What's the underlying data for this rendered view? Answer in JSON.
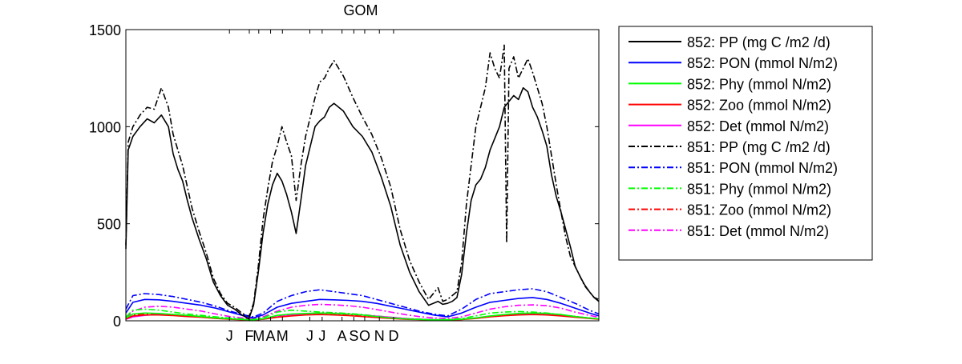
{
  "chart_data": {
    "type": "line",
    "title": "GOM",
    "xlabel": "",
    "ylabel": "",
    "xlim": [
      0,
      1000
    ],
    "ylim": [
      0,
      1500
    ],
    "y_ticks": [
      0,
      500,
      1000,
      1500
    ],
    "x_tick_labels": [
      {
        "label": "J",
        "x": 219
      },
      {
        "label": "F",
        "x": 261
      },
      {
        "label": "M",
        "x": 281
      },
      {
        "label": "A",
        "x": 306
      },
      {
        "label": "M",
        "x": 331
      },
      {
        "label": "J",
        "x": 389
      },
      {
        "label": "J",
        "x": 415
      },
      {
        "label": "A",
        "x": 457
      },
      {
        "label": "S",
        "x": 482
      },
      {
        "label": "O",
        "x": 505
      },
      {
        "label": "N",
        "x": 536
      },
      {
        "label": "D",
        "x": 566
      }
    ],
    "grid": false,
    "legend_position": "outside-right",
    "series": [
      {
        "name": "852: PP (mg C /m2 /d)",
        "color": "#000000",
        "dash": "solid",
        "x": [
          0,
          5,
          15,
          30,
          45,
          60,
          75,
          90,
          100,
          110,
          120,
          130,
          140,
          155,
          170,
          185,
          200,
          215,
          230,
          245,
          260,
          270,
          280,
          290,
          300,
          310,
          320,
          330,
          340,
          350,
          360,
          370,
          380,
          390,
          400,
          410,
          420,
          430,
          440,
          460,
          480,
          500,
          520,
          540,
          560,
          580,
          600,
          620,
          640,
          660,
          670,
          680,
          690,
          700,
          710,
          720,
          730,
          740,
          750,
          760,
          770,
          780,
          790,
          800,
          810,
          820,
          830,
          840,
          850,
          860,
          870,
          880,
          890,
          900,
          910,
          920,
          930,
          940,
          950,
          960,
          970,
          980,
          990,
          1000
        ],
        "y": [
          370,
          880,
          950,
          1000,
          1040,
          1020,
          1060,
          1000,
          860,
          780,
          720,
          620,
          530,
          420,
          320,
          200,
          130,
          80,
          60,
          30,
          10,
          80,
          250,
          450,
          600,
          700,
          760,
          720,
          650,
          560,
          450,
          620,
          800,
          900,
          1000,
          1030,
          1050,
          1100,
          1120,
          1080,
          1000,
          950,
          870,
          740,
          590,
          390,
          250,
          150,
          80,
          100,
          85,
          90,
          100,
          120,
          240,
          450,
          620,
          700,
          730,
          790,
          880,
          940,
          1000,
          1100,
          1130,
          1160,
          1140,
          1200,
          1180,
          1100,
          1050,
          980,
          900,
          750,
          640,
          560,
          470,
          380,
          280,
          230,
          185,
          150,
          120,
          100
        ]
      },
      {
        "name": "852: PON (mmol N/m2)",
        "color": "#0000ff",
        "dash": "solid",
        "x": [
          0,
          15,
          40,
          70,
          100,
          130,
          160,
          190,
          220,
          250,
          270,
          290,
          320,
          350,
          380,
          410,
          440,
          470,
          500,
          530,
          560,
          590,
          620,
          650,
          680,
          710,
          740,
          770,
          800,
          830,
          860,
          890,
          920,
          950,
          980,
          1000
        ],
        "y": [
          40,
          95,
          110,
          108,
          100,
          90,
          80,
          65,
          45,
          25,
          15,
          30,
          70,
          90,
          100,
          110,
          108,
          105,
          100,
          90,
          75,
          60,
          45,
          30,
          20,
          40,
          70,
          95,
          105,
          115,
          120,
          110,
          90,
          65,
          40,
          25
        ]
      },
      {
        "name": "852: Phy (mmol N/m2)",
        "color": "#00ff00",
        "dash": "solid",
        "x": [
          0,
          15,
          40,
          70,
          100,
          130,
          160,
          190,
          220,
          250,
          270,
          290,
          320,
          350,
          380,
          410,
          440,
          470,
          500,
          530,
          560,
          590,
          620,
          650,
          680,
          710,
          740,
          770,
          800,
          830,
          860,
          890,
          920,
          950,
          980,
          1000
        ],
        "y": [
          15,
          35,
          40,
          38,
          33,
          28,
          22,
          15,
          10,
          6,
          5,
          10,
          28,
          35,
          38,
          40,
          38,
          35,
          30,
          22,
          15,
          10,
          7,
          5,
          5,
          8,
          15,
          25,
          32,
          38,
          40,
          38,
          32,
          22,
          14,
          10
        ]
      },
      {
        "name": "852: Zoo (mmol N/m2)",
        "color": "#ff0000",
        "dash": "solid",
        "x": [
          0,
          15,
          40,
          70,
          100,
          130,
          160,
          190,
          220,
          250,
          270,
          290,
          320,
          350,
          380,
          410,
          440,
          470,
          500,
          530,
          560,
          590,
          620,
          650,
          680,
          710,
          740,
          770,
          800,
          830,
          860,
          890,
          920,
          950,
          980,
          1000
        ],
        "y": [
          10,
          25,
          30,
          30,
          27,
          22,
          18,
          12,
          8,
          5,
          4,
          8,
          18,
          25,
          30,
          32,
          30,
          27,
          22,
          17,
          12,
          8,
          6,
          4,
          4,
          6,
          12,
          20,
          26,
          30,
          32,
          30,
          25,
          18,
          12,
          8
        ]
      },
      {
        "name": "852: Det (mmol N/m2)",
        "color": "#ff00ff",
        "dash": "solid",
        "x": [
          0,
          15,
          40,
          70,
          100,
          130,
          160,
          190,
          220,
          250,
          270,
          290,
          320,
          350,
          380,
          410,
          440,
          470,
          500,
          530,
          560,
          590,
          620,
          650,
          680,
          710,
          740,
          770,
          800,
          830,
          860,
          890,
          920,
          950,
          980,
          1000
        ],
        "y": [
          8,
          20,
          28,
          33,
          30,
          25,
          20,
          14,
          9,
          6,
          5,
          8,
          20,
          28,
          35,
          40,
          38,
          35,
          30,
          24,
          18,
          12,
          8,
          6,
          5,
          8,
          15,
          24,
          30,
          35,
          37,
          35,
          30,
          22,
          14,
          10
        ]
      },
      {
        "name": "851: PP (mg C /m2 /d)",
        "color": "#000000",
        "dash": "dashdot",
        "x": [
          0,
          5,
          15,
          30,
          45,
          60,
          75,
          90,
          100,
          110,
          120,
          130,
          140,
          155,
          170,
          185,
          200,
          215,
          230,
          245,
          260,
          270,
          280,
          290,
          300,
          310,
          320,
          330,
          340,
          350,
          360,
          370,
          380,
          390,
          400,
          410,
          420,
          430,
          440,
          460,
          480,
          500,
          520,
          540,
          560,
          580,
          600,
          620,
          640,
          660,
          670,
          680,
          690,
          700,
          710,
          720,
          730,
          740,
          750,
          760,
          770,
          780,
          790,
          800,
          805,
          810,
          820,
          830,
          840,
          850,
          860,
          870,
          880,
          890,
          900,
          910,
          920,
          930,
          940,
          950,
          960,
          970,
          980,
          990,
          1000
        ],
        "y": [
          390,
          920,
          1000,
          1060,
          1100,
          1090,
          1200,
          1100,
          960,
          880,
          800,
          690,
          580,
          460,
          350,
          220,
          140,
          90,
          70,
          40,
          20,
          90,
          280,
          520,
          680,
          820,
          900,
          1000,
          920,
          850,
          620,
          800,
          950,
          1050,
          1150,
          1230,
          1250,
          1300,
          1340,
          1260,
          1150,
          1050,
          960,
          840,
          690,
          470,
          310,
          200,
          110,
          170,
          100,
          110,
          130,
          150,
          300,
          600,
          800,
          1000,
          1100,
          1200,
          1380,
          1300,
          1250,
          1420,
          400,
          1300,
          1360,
          1250,
          1300,
          1350,
          1280,
          1200,
          1120,
          1000,
          850,
          700,
          560,
          430,
          330,
          280,
          230,
          180,
          150,
          120,
          110
        ]
      },
      {
        "name": "851: PON (mmol N/m2)",
        "color": "#0000ff",
        "dash": "dashdot",
        "x": [
          0,
          15,
          40,
          70,
          100,
          130,
          160,
          190,
          220,
          250,
          270,
          290,
          320,
          350,
          380,
          410,
          440,
          470,
          500,
          530,
          560,
          590,
          620,
          650,
          680,
          710,
          740,
          770,
          800,
          830,
          860,
          890,
          920,
          950,
          980,
          1000
        ],
        "y": [
          60,
          130,
          140,
          135,
          125,
          110,
          95,
          75,
          50,
          30,
          20,
          40,
          100,
          130,
          150,
          160,
          150,
          140,
          130,
          110,
          90,
          70,
          50,
          35,
          25,
          60,
          110,
          140,
          150,
          160,
          165,
          150,
          120,
          90,
          55,
          35
        ]
      },
      {
        "name": "851: Phy (mmol N/m2)",
        "color": "#00ff00",
        "dash": "dashdot",
        "x": [
          0,
          15,
          40,
          70,
          100,
          130,
          160,
          190,
          220,
          250,
          270,
          290,
          320,
          350,
          380,
          410,
          440,
          470,
          500,
          530,
          560,
          590,
          620,
          650,
          680,
          710,
          740,
          770,
          800,
          830,
          860,
          890,
          920,
          950,
          980,
          1000
        ],
        "y": [
          20,
          55,
          60,
          55,
          45,
          35,
          28,
          20,
          14,
          9,
          7,
          15,
          45,
          55,
          50,
          45,
          42,
          38,
          32,
          25,
          18,
          12,
          9,
          7,
          7,
          12,
          25,
          40,
          45,
          48,
          45,
          40,
          32,
          22,
          14,
          10
        ]
      },
      {
        "name": "851: Zoo (mmol N/m2)",
        "color": "#ff0000",
        "dash": "dashdot",
        "x": [
          0,
          15,
          40,
          70,
          100,
          130,
          160,
          190,
          220,
          250,
          270,
          290,
          320,
          350,
          380,
          410,
          440,
          470,
          500,
          530,
          560,
          590,
          620,
          650,
          680,
          710,
          740,
          770,
          800,
          830,
          860,
          890,
          920,
          950,
          980,
          1000
        ],
        "y": [
          12,
          30,
          35,
          35,
          32,
          27,
          22,
          15,
          10,
          6,
          5,
          10,
          22,
          30,
          35,
          38,
          36,
          32,
          27,
          20,
          14,
          10,
          7,
          5,
          5,
          7,
          14,
          24,
          30,
          35,
          37,
          35,
          30,
          22,
          14,
          9
        ]
      },
      {
        "name": "851: Det (mmol N/m2)",
        "color": "#ff00ff",
        "dash": "dashdot",
        "x": [
          0,
          15,
          40,
          70,
          100,
          130,
          160,
          190,
          220,
          250,
          270,
          290,
          320,
          350,
          380,
          410,
          440,
          470,
          500,
          530,
          560,
          590,
          620,
          650,
          680,
          710,
          740,
          770,
          800,
          830,
          860,
          890,
          920,
          950,
          980,
          1000
        ],
        "y": [
          15,
          50,
          70,
          75,
          70,
          60,
          50,
          35,
          22,
          14,
          10,
          20,
          50,
          70,
          80,
          85,
          82,
          78,
          70,
          58,
          45,
          32,
          22,
          15,
          12,
          20,
          40,
          60,
          72,
          80,
          82,
          78,
          65,
          45,
          28,
          18
        ]
      }
    ]
  }
}
